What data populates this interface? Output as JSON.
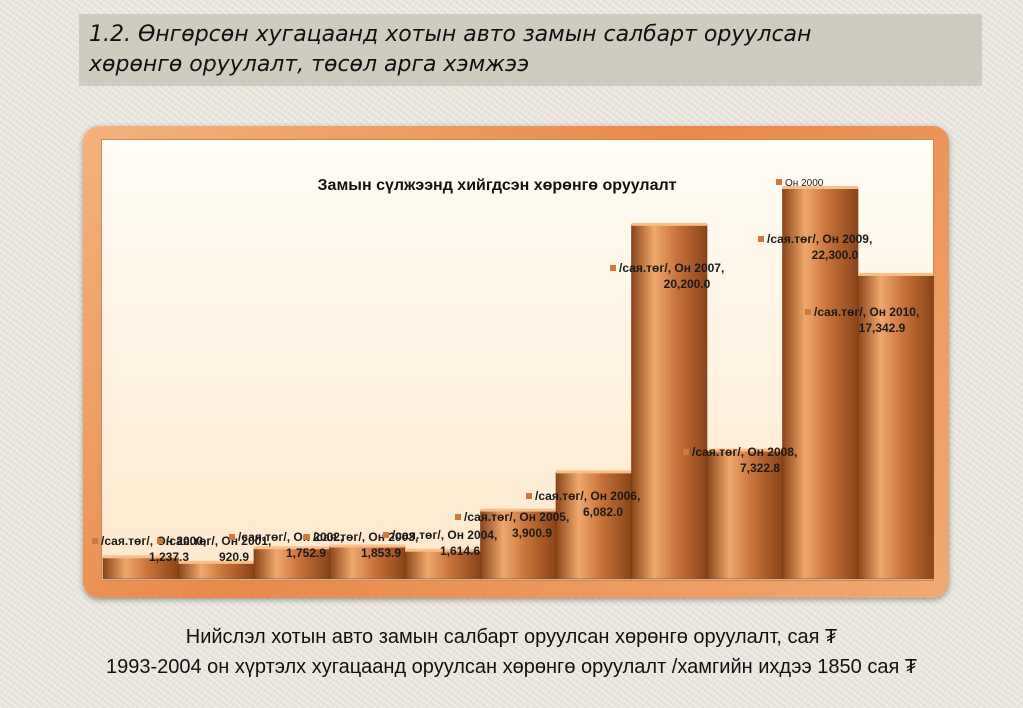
{
  "slide": {
    "heading_line1": "1.2. Өнгөрсөн хугацаанд  хотын авто замын салбарт оруулсан",
    "heading_line2": "хөрөнгө оруулалт, төсөл арга хэмжээ",
    "caption_line1": "Нийслэл хотын авто замын салбарт оруулсан хөрөнгө оруулалт, сая ₮",
    "caption_line2": "1993-2004 он хүртэлх хугацаанд оруулсан хөрөнгө оруулалт /хамгийн ихдээ 1850 сая ₮"
  },
  "chart_data": {
    "type": "bar",
    "title": "Замын сүлжээнд хийгдсэн хөрөнгө оруулалт",
    "legend_entry": "Он 2000",
    "categories": [
      "Он 2000",
      "Он 2001",
      "Он 2002",
      "Он 2003",
      "Он 2004",
      "Он 2005",
      "Он 2006",
      "Он 2007",
      "Он 2008",
      "Он 2009",
      "Он 2010"
    ],
    "series_prefix": "/сая.төг/",
    "values": [
      1237.3,
      920.9,
      1752.9,
      1853.9,
      1614.6,
      3900.9,
      6082.0,
      20200.0,
      7322.8,
      22300.0,
      17342.9
    ],
    "value_labels": [
      "1,237.3",
      "920.9",
      "1,752.9",
      "1,853.9",
      "1,614.6",
      "3,900.9",
      "6,082.0",
      "20,200.0",
      "7,322.8",
      "22,300.0",
      "17,342.9"
    ],
    "ylim": [
      0,
      22300
    ],
    "grid": false,
    "legend_position": "top-right",
    "colors": {
      "bar": "#c8723a",
      "bar_light": "#f0a86c",
      "bar_dark": "#8a4418",
      "marker": "#cc7a3e"
    }
  }
}
